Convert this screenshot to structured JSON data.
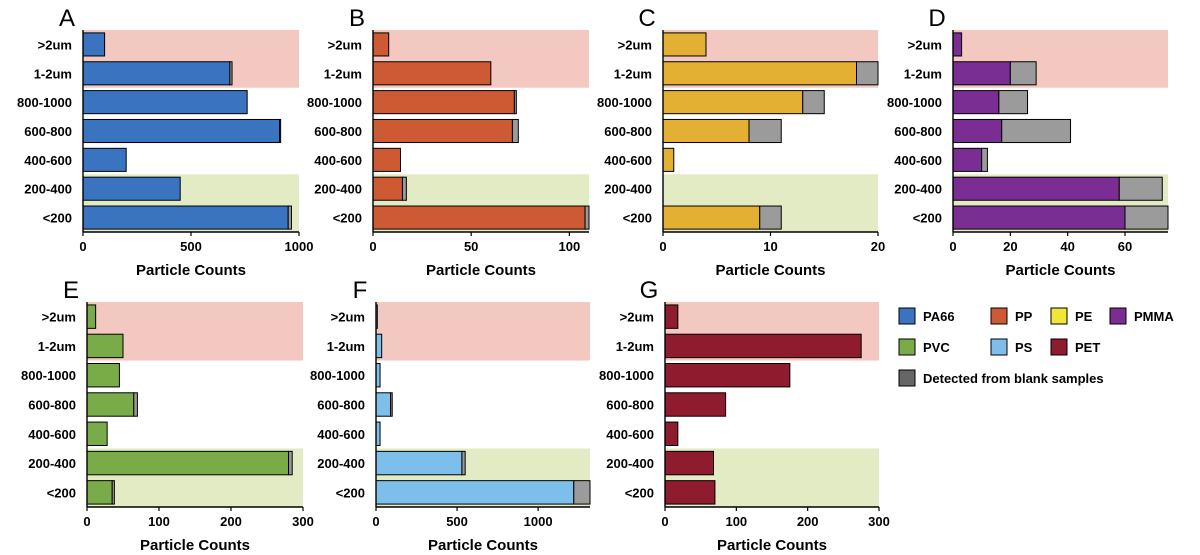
{
  "chart_data": [
    {
      "panel": "A",
      "type": "bar",
      "orientation": "horizontal",
      "stacked": true,
      "categories": [
        ">2um",
        "1-2um",
        "800-1000",
        "600-800",
        "400-600",
        "200-400",
        "<200"
      ],
      "series": [
        {
          "name": "PA66",
          "values": [
            100,
            680,
            760,
            910,
            200,
            450,
            950
          ]
        },
        {
          "name": "Detected from blank samples",
          "values": [
            0,
            10,
            0,
            5,
            0,
            0,
            15
          ]
        }
      ],
      "xlim": [
        0,
        1000
      ],
      "xticks": [
        0,
        500,
        1000
      ],
      "xlabel": "Particle Counts",
      "color": "#3A74C0",
      "bands": {
        "top": [
          0,
          1
        ],
        "bottom": [
          5,
          6
        ]
      }
    },
    {
      "panel": "B",
      "type": "bar",
      "orientation": "horizontal",
      "stacked": true,
      "categories": [
        ">2um",
        "1-2um",
        "800-1000",
        "600-800",
        "400-600",
        "200-400",
        "<200"
      ],
      "series": [
        {
          "name": "PP",
          "values": [
            8,
            60,
            72,
            71,
            14,
            15,
            108
          ]
        },
        {
          "name": "Detected from blank samples",
          "values": [
            0,
            0,
            1,
            3,
            0,
            2,
            3
          ]
        }
      ],
      "xlim": [
        0,
        110
      ],
      "xticks": [
        0,
        50,
        100
      ],
      "xlabel": "Particle Counts",
      "color": "#CE5A33",
      "bands": {
        "top": [
          0,
          1
        ],
        "bottom": [
          5,
          6
        ]
      }
    },
    {
      "panel": "C",
      "type": "bar",
      "orientation": "horizontal",
      "stacked": true,
      "categories": [
        ">2um",
        "1-2um",
        "800-1000",
        "600-800",
        "400-600",
        "200-400",
        "<200"
      ],
      "series": [
        {
          "name": "PE",
          "values": [
            4,
            18,
            13,
            8,
            1,
            0,
            9
          ]
        },
        {
          "name": "Detected from blank samples",
          "values": [
            0,
            2,
            2,
            3,
            0,
            0,
            2
          ]
        }
      ],
      "xlim": [
        0,
        20
      ],
      "xticks": [
        0,
        10,
        20
      ],
      "xlabel": "Particle Counts",
      "color": "#E4B034",
      "bands": {
        "top": [
          0,
          1
        ],
        "bottom": [
          5,
          6
        ]
      }
    },
    {
      "panel": "D",
      "type": "bar",
      "orientation": "horizontal",
      "stacked": true,
      "categories": [
        ">2um",
        "1-2um",
        "800-1000",
        "600-800",
        "400-600",
        "200-400",
        "<200"
      ],
      "series": [
        {
          "name": "PMMA",
          "values": [
            3,
            20,
            16,
            17,
            10,
            58,
            60
          ]
        },
        {
          "name": "Detected from blank samples",
          "values": [
            0,
            9,
            10,
            24,
            2,
            15,
            15
          ]
        }
      ],
      "xlim": [
        0,
        75
      ],
      "xticks": [
        0,
        20,
        40,
        60
      ],
      "xlabel": "Particle Counts",
      "color": "#7A2E93",
      "bands": {
        "top": [
          0,
          1
        ],
        "bottom": [
          5,
          6
        ]
      }
    },
    {
      "panel": "E",
      "type": "bar",
      "orientation": "horizontal",
      "stacked": true,
      "categories": [
        ">2um",
        "1-2um",
        "800-1000",
        "600-800",
        "400-600",
        "200-400",
        "<200"
      ],
      "series": [
        {
          "name": "PVC",
          "values": [
            12,
            50,
            45,
            65,
            28,
            280,
            35
          ]
        },
        {
          "name": "Detected from blank samples",
          "values": [
            0,
            0,
            0,
            5,
            0,
            5,
            3
          ]
        }
      ],
      "xlim": [
        0,
        300
      ],
      "xticks": [
        0,
        100,
        200,
        300
      ],
      "xlabel": "Particle Counts",
      "color": "#7AAB49",
      "bands": {
        "top": [
          0,
          1
        ],
        "bottom": [
          5,
          6
        ]
      }
    },
    {
      "panel": "F",
      "type": "bar",
      "orientation": "horizontal",
      "stacked": true,
      "categories": [
        ">2um",
        "1-2um",
        "800-1000",
        "600-800",
        "400-600",
        "200-400",
        "<200"
      ],
      "series": [
        {
          "name": "PS",
          "values": [
            8,
            35,
            25,
            90,
            25,
            530,
            1220
          ]
        },
        {
          "name": "Detected from blank samples",
          "values": [
            0,
            0,
            0,
            10,
            0,
            20,
            100
          ]
        }
      ],
      "xlim": [
        0,
        1320
      ],
      "xticks": [
        0,
        500,
        1000
      ],
      "xlabel": "Particle Counts",
      "color": "#7DBEEB",
      "bands": {
        "top": [
          0,
          1
        ],
        "bottom": [
          5,
          6
        ]
      }
    },
    {
      "panel": "G",
      "type": "bar",
      "orientation": "horizontal",
      "stacked": true,
      "categories": [
        ">2um",
        "1-2um",
        "800-1000",
        "600-800",
        "400-600",
        "200-400",
        "<200"
      ],
      "series": [
        {
          "name": "PET",
          "values": [
            18,
            275,
            175,
            85,
            18,
            68,
            70
          ]
        },
        {
          "name": "Detected from blank samples",
          "values": [
            0,
            0,
            0,
            0,
            0,
            0,
            0
          ]
        }
      ],
      "xlim": [
        0,
        300
      ],
      "xticks": [
        0,
        100,
        200,
        300
      ],
      "xlabel": "Particle Counts",
      "color": "#8E1B2E",
      "bands": {
        "top": [
          0,
          1
        ],
        "bottom": [
          5,
          6
        ]
      }
    }
  ],
  "legend": {
    "items": [
      {
        "label": "PA66",
        "color": "#3A74C0"
      },
      {
        "label": "PP",
        "color": "#CE5A33"
      },
      {
        "label": "PE",
        "color": "#F2E53A"
      },
      {
        "label": "PMMA",
        "color": "#7A2E93"
      },
      {
        "label": "PVC",
        "color": "#7AAB49"
      },
      {
        "label": "PS",
        "color": "#7DBEEB"
      },
      {
        "label": "PET",
        "color": "#8E1B2E"
      },
      {
        "label": "Detected from blank samples",
        "color": "#666666"
      }
    ]
  },
  "colors": {
    "blank": "#9B9B9B",
    "band_top": "#F3C8C0",
    "band_bottom": "#E2EBC4"
  }
}
